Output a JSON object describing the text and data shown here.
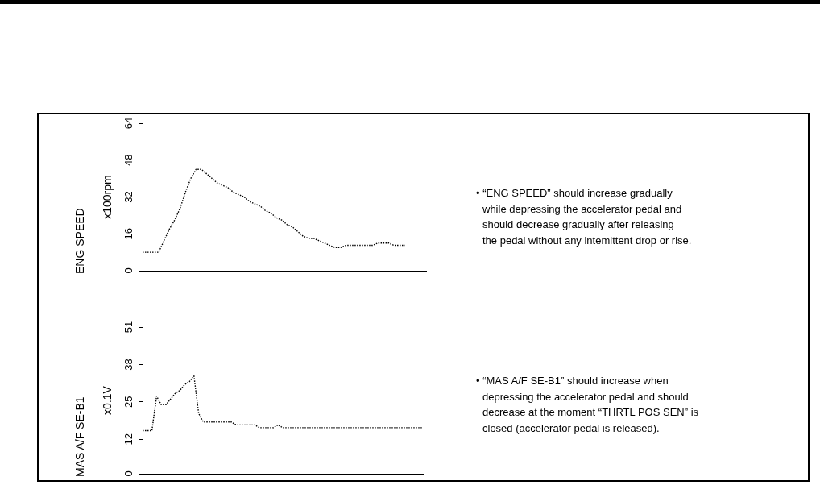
{
  "chart_data": [
    {
      "type": "line",
      "ylabel": "ENG SPEED\nx100rpm",
      "categories": [
        null,
        null,
        null,
        null,
        null,
        null,
        null,
        null,
        null,
        null,
        null,
        null,
        null,
        null,
        null,
        null,
        null,
        null,
        null,
        null,
        null,
        null,
        null,
        null,
        null,
        null,
        null,
        null,
        null,
        null,
        null,
        null,
        null,
        null,
        null,
        null,
        null,
        null,
        null,
        null,
        null,
        null,
        null,
        null,
        null,
        null,
        null,
        null,
        null,
        null,
        null,
        null,
        null,
        null
      ],
      "values": [
        8,
        8,
        8,
        8,
        13,
        18,
        22,
        27,
        34,
        40,
        44,
        44,
        42,
        40,
        38,
        37,
        36,
        34,
        33,
        32,
        30,
        29,
        28,
        26,
        25,
        23,
        22,
        20,
        19,
        17,
        15,
        14,
        14,
        13,
        12,
        11,
        10,
        10,
        11,
        11,
        11,
        11,
        11,
        11,
        12,
        12,
        12,
        11,
        11,
        11,
        null,
        null,
        null,
        null
      ],
      "color": "#000000",
      "ylim": [
        0,
        64
      ],
      "yticks": [
        0,
        16,
        32,
        48,
        64
      ],
      "tick_labels": "y",
      "marker": "none",
      "line_style": "dotted",
      "annotations": [
        "• “ENG SPEED” should increase gradually\nwhile depressing the accelerator pedal and\nshould decrease gradually after releasing\nthe pedal without any intemittent drop or rise."
      ]
    },
    {
      "type": "line",
      "ylabel": "MAS A/F SE-B1\nx0.1V",
      "categories": [
        null,
        null,
        null,
        null,
        null,
        null,
        null,
        null,
        null,
        null,
        null,
        null,
        null,
        null,
        null,
        null,
        null,
        null,
        null,
        null,
        null,
        null,
        null,
        null,
        null,
        null,
        null,
        null,
        null,
        null,
        null,
        null,
        null,
        null,
        null,
        null,
        null,
        null,
        null,
        null,
        null,
        null,
        null,
        null,
        null,
        null,
        null,
        null,
        null,
        null,
        null,
        null,
        null,
        null,
        null,
        null,
        null,
        null,
        null,
        null,
        null
      ],
      "values": [
        15,
        15,
        15,
        27,
        24,
        24,
        26,
        28,
        29,
        31,
        32,
        34,
        21,
        18,
        18,
        18,
        18,
        18,
        18,
        18,
        17,
        17,
        17,
        17,
        17,
        16,
        16,
        16,
        16,
        17,
        16,
        16,
        16,
        16,
        16,
        16,
        16,
        16,
        16,
        16,
        16,
        16,
        16,
        16,
        16,
        16,
        16,
        16,
        16,
        16,
        16,
        16,
        16,
        16,
        16,
        16,
        16,
        16,
        16,
        16,
        16
      ],
      "color": "#000000",
      "ylim": [
        0,
        51
      ],
      "yticks": [
        0,
        12,
        25,
        38,
        51
      ],
      "tick_labels": "y",
      "marker": "none",
      "line_style": "dotted",
      "annotations": [
        "• “MAS A/F SE-B1” should increase when\ndepressing the accelerator pedal and should\ndecrease at the moment “THRTL POS SEN” is\nclosed (accelerator pedal is released)."
      ]
    }
  ]
}
